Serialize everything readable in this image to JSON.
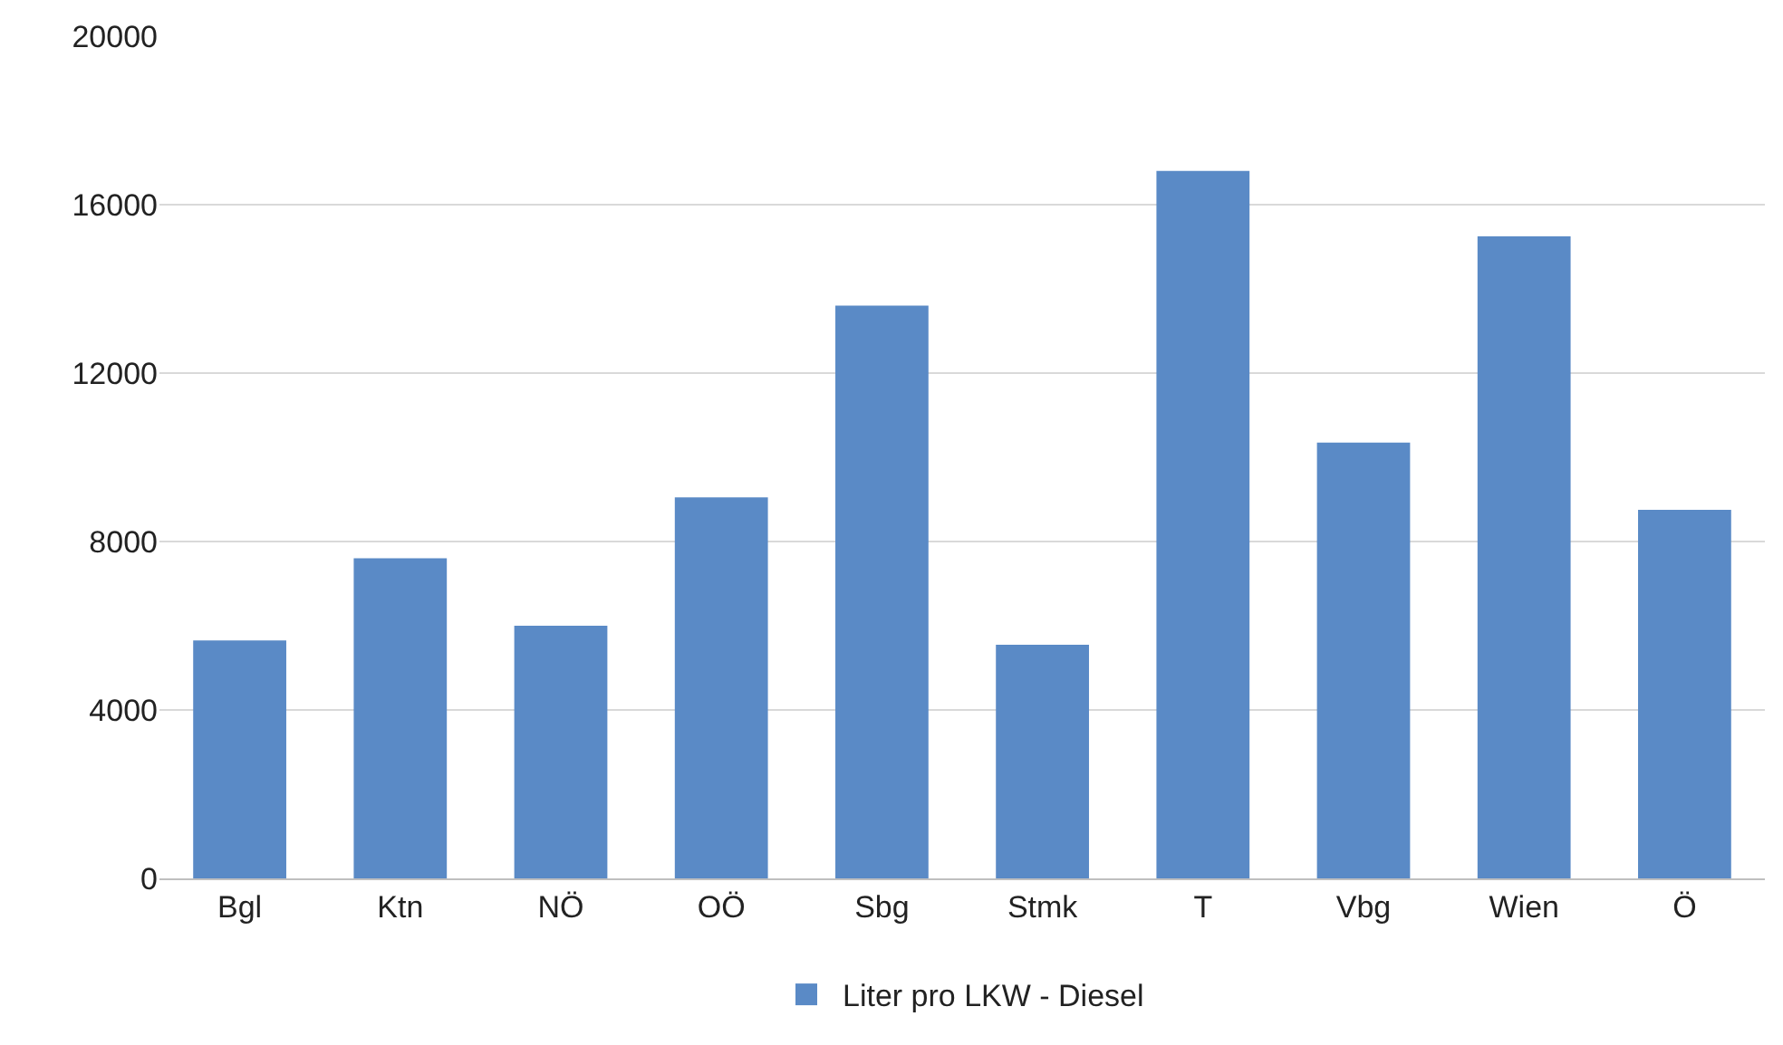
{
  "chart_data": {
    "type": "bar",
    "categories": [
      "Bgl",
      "Ktn",
      "NÖ",
      "OÖ",
      "Sbg",
      "Stmk",
      "T",
      "Vbg",
      "Wien",
      "Ö"
    ],
    "series": [
      {
        "name": "Liter pro LKW - Diesel",
        "color": "#5a8ac6",
        "values": [
          5650,
          7600,
          6000,
          9050,
          13600,
          5550,
          16800,
          10350,
          15250,
          8750
        ]
      }
    ],
    "ylim": [
      0,
      20000
    ],
    "yticks": [
      0,
      4000,
      8000,
      12000,
      16000,
      20000
    ],
    "grid": "y",
    "legend": "bottom"
  }
}
